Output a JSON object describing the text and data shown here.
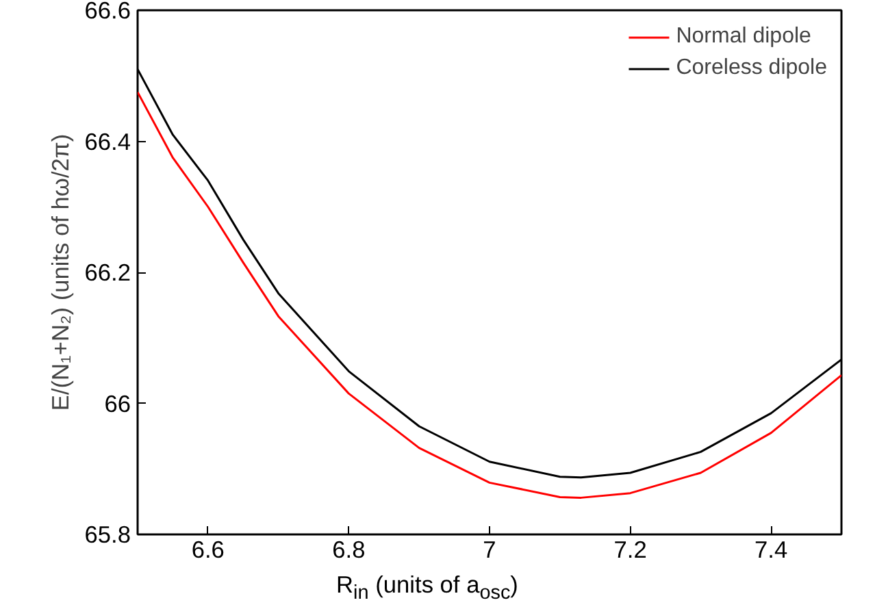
{
  "chart_data": {
    "type": "line",
    "xlabel": "R$_{in}$ (units of a$_{osc}$)",
    "ylabel": "E/(N₁+N₂) (units of hω/2π)",
    "x": [
      6.5,
      6.55,
      6.6,
      6.65,
      6.7,
      6.8,
      6.9,
      7.0,
      7.1,
      7.13,
      7.2,
      7.3,
      7.4,
      7.5
    ],
    "series": [
      {
        "name": "Normal dipole",
        "color": "#ff0000",
        "values": [
          66.475,
          66.375,
          66.3,
          66.215,
          66.133,
          66.015,
          65.932,
          65.879,
          65.857,
          65.856,
          65.863,
          65.894,
          65.955,
          66.043
        ]
      },
      {
        "name": "Coreless dipole",
        "color": "#000000",
        "values": [
          66.51,
          66.41,
          66.34,
          66.25,
          66.168,
          66.049,
          65.965,
          65.911,
          65.888,
          65.887,
          65.894,
          65.926,
          65.985,
          66.067
        ]
      }
    ],
    "xlim": [
      6.5,
      7.5
    ],
    "xticks": [
      6.6,
      6.8,
      7,
      7.2,
      7.4
    ],
    "ylim": [
      65.8,
      66.6
    ],
    "yticks": [
      65.8,
      66,
      66.2,
      66.4,
      66.6
    ],
    "legend": "top right",
    "grid": false,
    "marker": "none",
    "line_style": "solid"
  }
}
